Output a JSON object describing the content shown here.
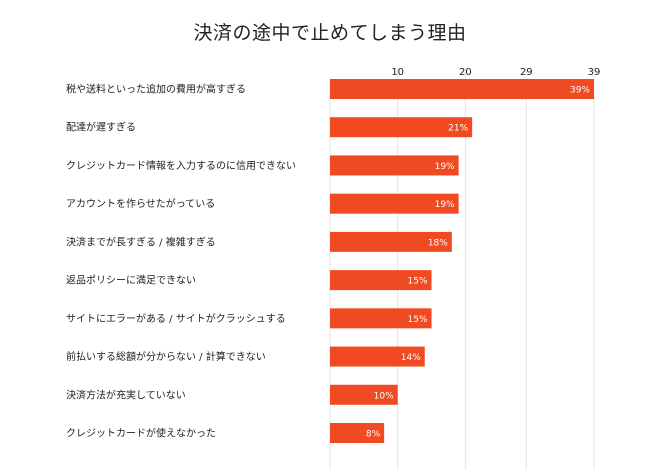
{
  "chart_data": {
    "type": "bar",
    "orientation": "horizontal",
    "title": "決済の途中で止めてしまう理由",
    "categories": [
      "税や送料といった追加の費用が高すぎる",
      "配達が遅すぎる",
      "クレジットカード情報を入力するのに信用できない",
      "アカウントを作らせたがっている",
      "決済までが長すぎる / 複雑すぎる",
      "返品ポリシーに満足できない",
      "サイトにエラーがある / サイトがクラッシュする",
      "前払いする総額が分からない / 計算できない",
      "決済方法が充実していない",
      "クレジットカードが使えなかった"
    ],
    "values": [
      39,
      21,
      19,
      19,
      18,
      15,
      15,
      14,
      10,
      8
    ],
    "value_labels": [
      "39%",
      "21%",
      "19%",
      "19%",
      "18%",
      "15%",
      "15%",
      "14%",
      "10%",
      "8%"
    ],
    "x_ticks": [
      10,
      20,
      29,
      39
    ],
    "xlim": [
      0,
      39
    ],
    "axis_position": "top",
    "grid": true,
    "legend": "none",
    "bar_color": "#f04a23",
    "label_color": "#ffffff",
    "grid_color": "#e4e4e4"
  }
}
